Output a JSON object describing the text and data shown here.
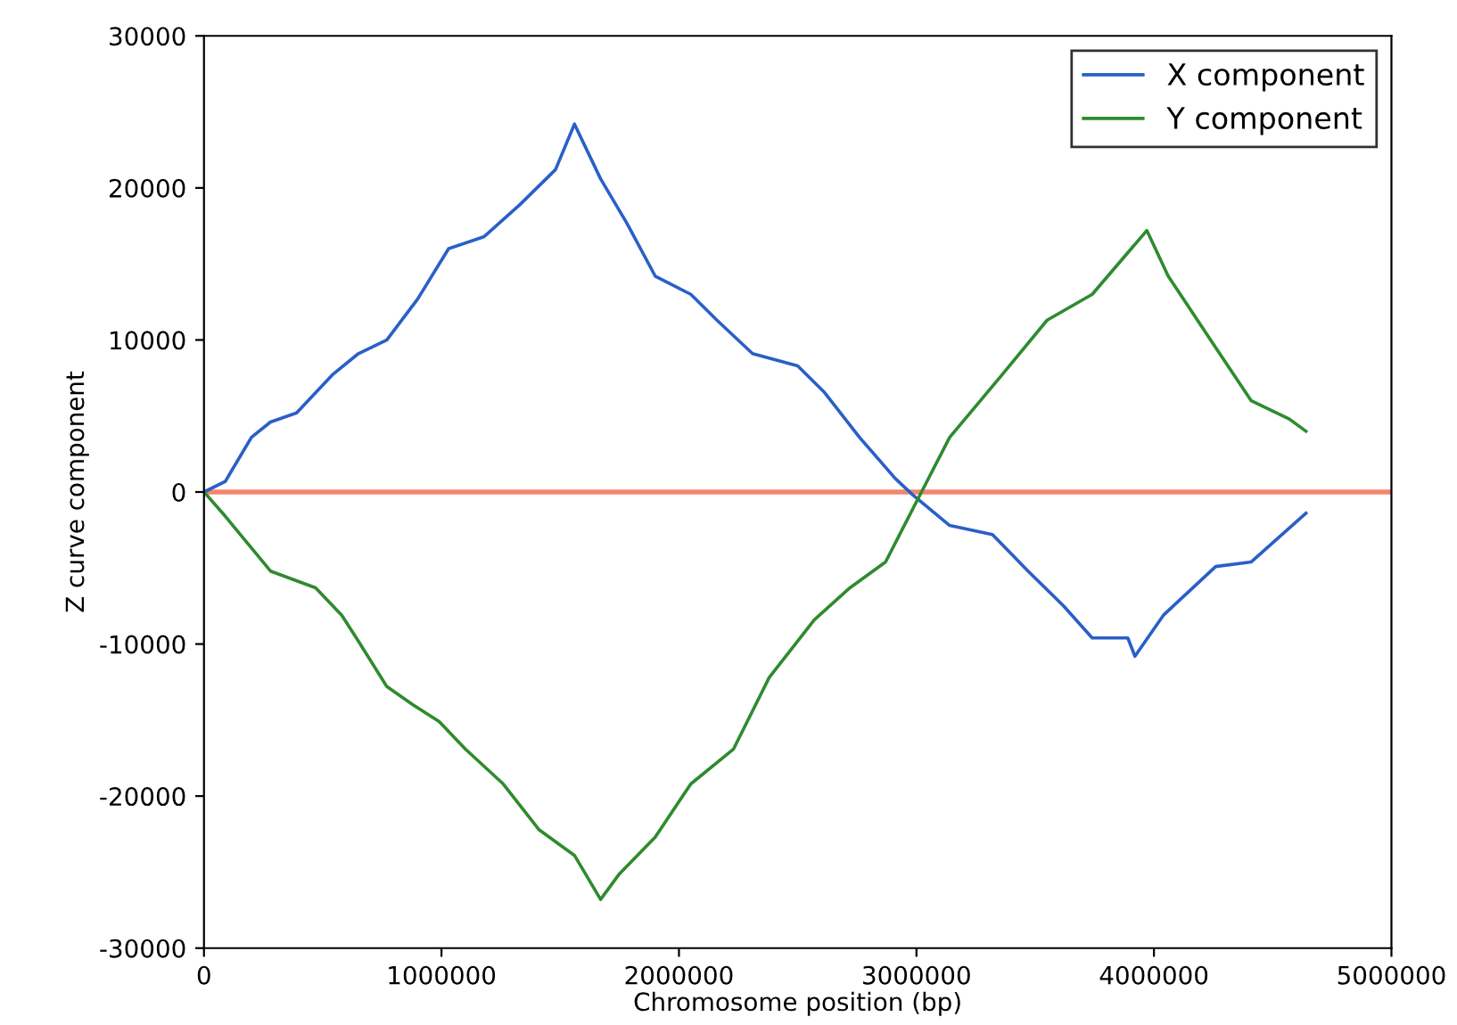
{
  "chart_data": {
    "type": "line",
    "xlabel": "Chromosome position (bp)",
    "ylabel": "Z curve component",
    "xlim": [
      0,
      5000000
    ],
    "ylim": [
      -30000,
      30000
    ],
    "xticks": [
      0,
      1000000,
      2000000,
      3000000,
      4000000,
      5000000
    ],
    "yticks": [
      -30000,
      -20000,
      -10000,
      0,
      10000,
      20000,
      30000
    ],
    "grid": false,
    "legend": "top right",
    "ref_lines": [
      {
        "axis": "y",
        "value": 0,
        "color": "#f4876e"
      }
    ],
    "series": [
      {
        "name": "X component",
        "color": "#2a5fc7",
        "x": [
          0,
          90000,
          200000,
          280000,
          390000,
          540000,
          650000,
          770000,
          900000,
          1030000,
          1180000,
          1330000,
          1480000,
          1560000,
          1670000,
          1780000,
          1900000,
          2050000,
          2160000,
          2310000,
          2500000,
          2610000,
          2760000,
          2910000,
          2985000,
          3140000,
          3320000,
          3470000,
          3620000,
          3740000,
          3890000,
          3920000,
          4040000,
          4260000,
          4410000,
          4640000
        ],
        "values": [
          0,
          700,
          3600,
          4600,
          5200,
          7700,
          9100,
          10000,
          12700,
          16000,
          16800,
          18900,
          21200,
          24200,
          20600,
          17700,
          14200,
          13000,
          11300,
          9100,
          8300,
          6600,
          3600,
          900,
          -200,
          -2200,
          -2800,
          -5200,
          -7500,
          -9600,
          -9600,
          -10800,
          -8100,
          -4900,
          -4600,
          -1400
        ]
      },
      {
        "name": "Y component",
        "color": "#2e8b2e",
        "x": [
          0,
          90000,
          280000,
          470000,
          580000,
          650000,
          770000,
          880000,
          990000,
          1100000,
          1260000,
          1410000,
          1560000,
          1670000,
          1750000,
          1900000,
          2050000,
          2230000,
          2380000,
          2570000,
          2720000,
          2870000,
          2985000,
          3140000,
          3360000,
          3550000,
          3740000,
          3970000,
          4060000,
          4260000,
          4410000,
          4570000,
          4640000
        ],
        "values": [
          0,
          -1600,
          -5200,
          -6300,
          -8100,
          -9800,
          -12800,
          -14000,
          -15100,
          -16900,
          -19200,
          -22200,
          -23900,
          -26800,
          -25100,
          -22700,
          -19200,
          -16900,
          -12200,
          -8400,
          -6300,
          -4600,
          -1100,
          3600,
          7700,
          11300,
          13000,
          17200,
          14200,
          9500,
          6000,
          4800,
          4000
        ]
      }
    ]
  }
}
